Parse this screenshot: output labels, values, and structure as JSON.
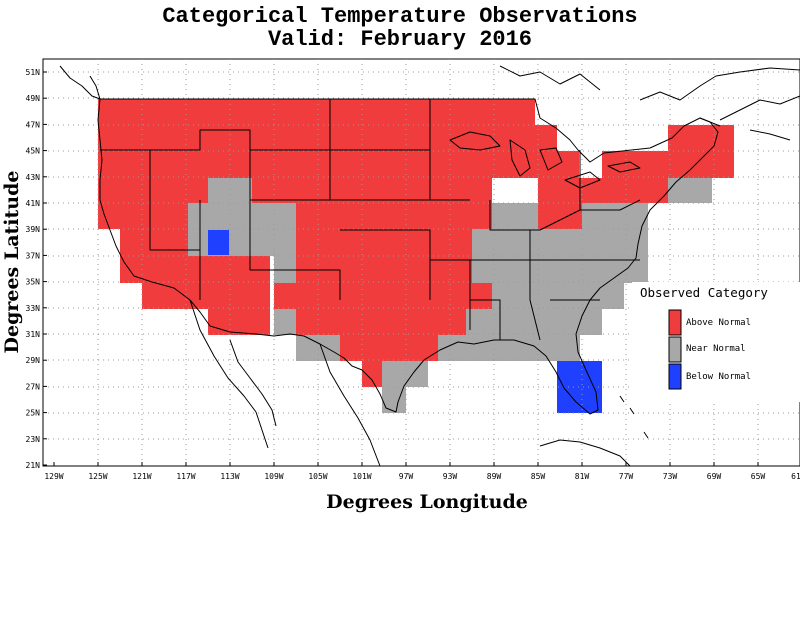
{
  "title_line1": "Categorical Temperature Observations",
  "title_line2": "Valid: February 2016",
  "x_axis_label": "Degrees Longitude",
  "y_axis_label": "Degrees Latitude",
  "lon_ticks": [
    "129W",
    "125W",
    "121W",
    "117W",
    "113W",
    "109W",
    "105W",
    "101W",
    "97W",
    "93W",
    "89W",
    "85W",
    "81W",
    "77W",
    "73W",
    "69W",
    "65W",
    "61"
  ],
  "lat_ticks": [
    "51N",
    "49N",
    "47N",
    "45N",
    "43N",
    "41N",
    "39N",
    "37N",
    "35N",
    "33N",
    "31N",
    "29N",
    "27N",
    "25N",
    "23N",
    "21N"
  ],
  "legend": {
    "title": "Observed Category",
    "items": [
      {
        "label": "Above Normal",
        "color": "#f03c3c"
      },
      {
        "label": "Near Normal",
        "color": "#a8a8a8"
      },
      {
        "label": "Below Normal",
        "color": "#2040ff"
      }
    ]
  },
  "grid": "dotted",
  "map_extent": {
    "lon": [
      -129,
      -61
    ],
    "lat": [
      21,
      52
    ]
  }
}
